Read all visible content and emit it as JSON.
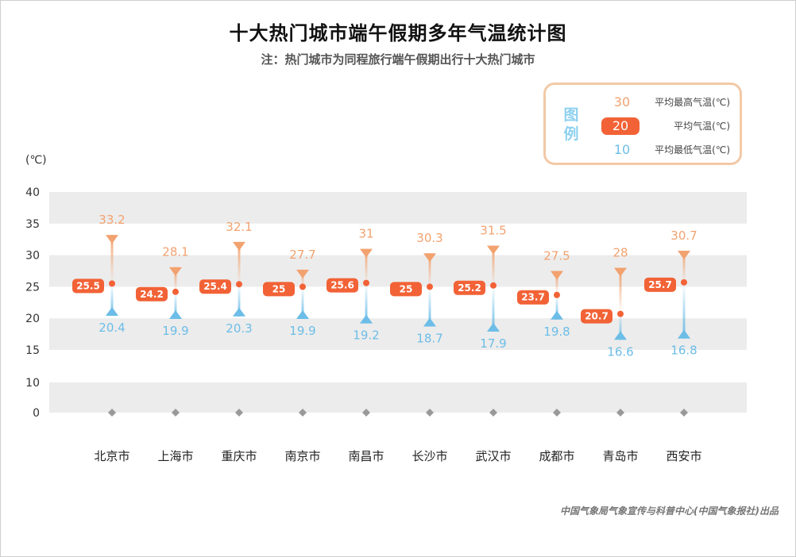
{
  "title": "十大热门城市端午假期多年气温统计图",
  "subtitle": "注：热门城市为同程旅行端午假期出行十大热门城市",
  "unit_label": "(℃)",
  "legend": {
    "title": "图例",
    "items": [
      {
        "value": "30",
        "label": "平均最高气温(℃)"
      },
      {
        "value": "20",
        "label": "平均气温(℃)"
      },
      {
        "value": "10",
        "label": "平均最低气温(℃)"
      }
    ]
  },
  "credit": "中国气象局气象宣传与科普中心(中国气象报社)出品",
  "colors": {
    "high": "#f2a26f",
    "avg": "#f26236",
    "low": "#6cbde7",
    "band": "#ececec",
    "axis_marker": "#999999"
  },
  "chart_data": {
    "type": "range",
    "categories": [
      "北京市",
      "上海市",
      "重庆市",
      "南京市",
      "南昌市",
      "长沙市",
      "武汉市",
      "成都市",
      "青岛市",
      "西安市"
    ],
    "series": [
      {
        "name": "平均最高气温(℃)",
        "values": [
          33.2,
          28.1,
          32.1,
          27.7,
          31,
          30.3,
          31.5,
          27.5,
          28,
          30.7
        ]
      },
      {
        "name": "平均气温(℃)",
        "values": [
          25.5,
          24.2,
          25.4,
          25,
          25.6,
          25,
          25.2,
          23.7,
          20.7,
          25.7
        ]
      },
      {
        "name": "平均最低气温(℃)",
        "values": [
          20.4,
          19.9,
          20.3,
          19.9,
          19.2,
          18.7,
          17.9,
          19.8,
          16.6,
          16.8
        ]
      }
    ],
    "y_ticks": [
      "40",
      "35",
      "30",
      "25",
      "20",
      "15",
      "10",
      "0"
    ],
    "ylabel": "(℃)",
    "grid": "alternating bands"
  }
}
